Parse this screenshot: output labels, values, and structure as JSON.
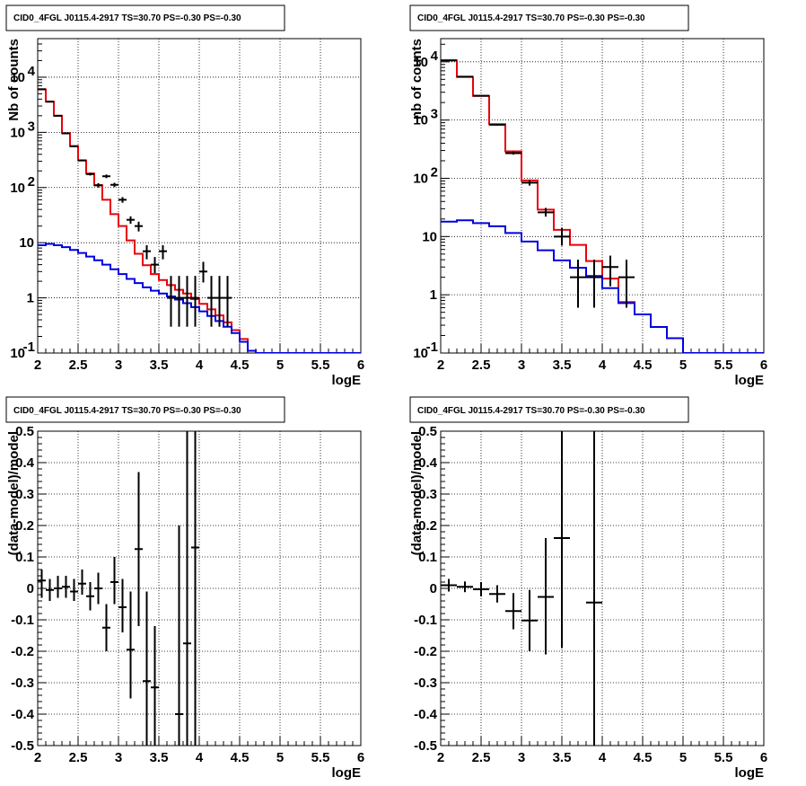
{
  "colors": {
    "data": "#000000",
    "total_model": "#e8000b",
    "source_model": "#0000e0",
    "grid": "#000000"
  },
  "chart_data": [
    {
      "type": "line",
      "title": "CID0_4FGL J0115.4-2917 TS=30.70 PS=-0.30 PS=-0.30",
      "xlabel": "logE",
      "ylabel": "Nb of counts",
      "xlim": [
        2,
        6
      ],
      "ylim": [
        0.1,
        50000
      ],
      "ylog": true,
      "grid": true,
      "xticks": [
        "2",
        "2.5",
        "3",
        "3.5",
        "4",
        "4.5",
        "5",
        "5.5",
        "6"
      ],
      "yticks": [
        {
          "v": 0.1,
          "b": "10",
          "e": "-1"
        },
        {
          "v": 1,
          "b": "1",
          "e": ""
        },
        {
          "v": 10,
          "b": "10",
          "e": ""
        },
        {
          "v": 100,
          "b": "10",
          "e": "2"
        },
        {
          "v": 1000,
          "b": "10",
          "e": "3"
        },
        {
          "v": 10000,
          "b": "10",
          "e": "4"
        }
      ],
      "series": [
        {
          "style": "hist",
          "color": "#e8000b",
          "edges": [
            2,
            2.1,
            2.2,
            2.3,
            2.4,
            2.5,
            2.6,
            2.7,
            2.8,
            2.9,
            3.0,
            3.1,
            3.2,
            3.3,
            3.4,
            3.5,
            3.6,
            3.7,
            3.8,
            3.9,
            4.0,
            4.1,
            4.2,
            4.3,
            4.4,
            4.5,
            4.6,
            4.7,
            4.8,
            4.9,
            5.0,
            5.1,
            5.2,
            5.3,
            5.4,
            5.5,
            5.6,
            5.7,
            5.8,
            5.9,
            6.0
          ],
          "values": [
            6000,
            3600,
            2000,
            960,
            560,
            310,
            180,
            110,
            60,
            33,
            20,
            11,
            6.3,
            3.9,
            2.7,
            2.1,
            1.7,
            1.4,
            1.2,
            0.95,
            0.78,
            0.62,
            0.48,
            0.36,
            0.26,
            0.18,
            0.11,
            0.08,
            0.08,
            0.08,
            0.08,
            0.08,
            0.08,
            0.08,
            0.08,
            0.08,
            0.08,
            0.08,
            0.08,
            0.08
          ]
        },
        {
          "style": "hist",
          "color": "#0000e0",
          "edges": [
            2,
            2.1,
            2.2,
            2.3,
            2.4,
            2.5,
            2.6,
            2.7,
            2.8,
            2.9,
            3.0,
            3.1,
            3.2,
            3.3,
            3.4,
            3.5,
            3.6,
            3.7,
            3.8,
            3.9,
            4.0,
            4.1,
            4.2,
            4.3,
            4.4,
            4.5,
            4.6,
            4.7,
            4.8,
            4.9,
            5.0,
            5.1,
            5.2,
            5.3,
            5.4,
            5.5,
            5.6,
            5.7,
            5.8,
            5.9,
            6.0
          ],
          "values": [
            9.0,
            9.5,
            9.0,
            8.3,
            7.4,
            6.5,
            5.6,
            4.8,
            4.0,
            3.3,
            2.7,
            2.2,
            1.85,
            1.55,
            1.35,
            1.2,
            1.06,
            0.93,
            0.8,
            0.68,
            0.57,
            0.47,
            0.38,
            0.3,
            0.23,
            0.16,
            0.11,
            0.1,
            0.1,
            0.1,
            0.1,
            0.1,
            0.1,
            0.1,
            0.1,
            0.1,
            0.1,
            0.1,
            0.1,
            0.1
          ]
        },
        {
          "style": "points",
          "color": "#000000",
          "x": [
            2.05,
            2.15,
            2.25,
            2.35,
            2.45,
            2.55,
            2.65,
            2.75,
            2.85,
            2.95,
            3.05,
            3.15,
            3.25,
            3.35,
            3.45,
            3.55,
            3.65,
            3.75,
            3.85,
            3.95,
            4.05,
            4.15,
            4.25,
            4.35
          ],
          "y": [
            6050,
            3600,
            2000,
            960,
            560,
            310,
            175,
            110,
            160,
            112,
            60,
            26,
            20,
            7,
            4,
            7,
            1,
            1,
            1,
            1,
            3,
            1,
            1,
            1
          ],
          "ylo": [
            5900,
            3500,
            1950,
            930,
            540,
            300,
            165,
            100,
            148,
            102,
            53,
            22,
            16,
            5,
            2.8,
            5,
            0.3,
            0.3,
            0.3,
            0.3,
            1.9,
            0.3,
            0.3,
            0.3
          ],
          "yhi": [
            6200,
            3700,
            2050,
            990,
            580,
            320,
            185,
            120,
            172,
            122,
            67,
            30,
            24,
            9,
            5.5,
            9,
            2.5,
            2.5,
            2.5,
            2.5,
            4.5,
            2.5,
            2.5,
            2.5
          ],
          "xerr": 0.05
        }
      ]
    },
    {
      "type": "line",
      "title": "CID0_4FGL J0115.4-2917 TS=30.70 PS=-0.30 PS=-0.30",
      "xlabel": "logE",
      "ylabel": "nb of counts",
      "xlim": [
        2,
        6
      ],
      "ylim": [
        0.1,
        25000
      ],
      "ylog": true,
      "grid": true,
      "xticks": [
        "2",
        "2.5",
        "3",
        "3.5",
        "4",
        "4.5",
        "5",
        "5.5",
        "6"
      ],
      "yticks": [
        {
          "v": 0.1,
          "b": "10",
          "e": "-1"
        },
        {
          "v": 1,
          "b": "1",
          "e": ""
        },
        {
          "v": 10,
          "b": "10",
          "e": ""
        },
        {
          "v": 100,
          "b": "10",
          "e": "2"
        },
        {
          "v": 1000,
          "b": "10",
          "e": "3"
        },
        {
          "v": 10000,
          "b": "10",
          "e": "4"
        }
      ],
      "series": [
        {
          "style": "hist",
          "color": "#e8000b",
          "edges": [
            2,
            2.2,
            2.4,
            2.6,
            2.8,
            3.0,
            3.2,
            3.4,
            3.6,
            3.8,
            4.0,
            4.2,
            4.4,
            4.6,
            4.8,
            5.0,
            5.2,
            5.4,
            5.6,
            5.8,
            6.0
          ],
          "values": [
            10500,
            5500,
            2600,
            850,
            290,
            92,
            29,
            13,
            7.2,
            3.8,
            1.9,
            0.75,
            0.46,
            0.28,
            0.18,
            0.1,
            0.1,
            0.1,
            0.1,
            0.1
          ]
        },
        {
          "style": "hist",
          "color": "#0000e0",
          "edges": [
            2,
            2.2,
            2.4,
            2.6,
            2.8,
            3.0,
            3.2,
            3.4,
            3.6,
            3.8,
            4.0,
            4.2,
            4.4,
            4.6,
            4.8,
            5.0,
            5.2,
            5.4,
            5.6,
            5.8,
            6.0
          ],
          "values": [
            18,
            19,
            17,
            15,
            11.5,
            8.2,
            5.8,
            3.9,
            2.9,
            2.1,
            1.3,
            0.72,
            0.46,
            0.28,
            0.18,
            0.1,
            0.1,
            0.1,
            0.1,
            0.1
          ]
        },
        {
          "style": "points",
          "color": "#000000",
          "x": [
            2.1,
            2.3,
            2.5,
            2.7,
            2.9,
            3.1,
            3.3,
            3.5,
            3.7,
            3.9,
            4.1,
            4.3
          ],
          "y": [
            10600,
            5550,
            2610,
            830,
            270,
            84,
            26,
            10,
            2,
            2,
            3,
            2
          ],
          "ylo": [
            10400,
            5450,
            2560,
            805,
            255,
            75,
            22,
            7,
            0.6,
            0.6,
            1.4,
            0.6
          ],
          "yhi": [
            10800,
            5650,
            2660,
            855,
            287,
            93,
            31,
            14,
            4,
            4,
            4.7,
            4
          ],
          "xerr": 0.1
        }
      ]
    },
    {
      "type": "scatter",
      "title": "CID0_4FGL J0115.4-2917 TS=30.70 PS=-0.30 PS=-0.30",
      "xlabel": "logE",
      "ylabel": "(data-model)/model",
      "xlim": [
        2,
        6
      ],
      "ylim": [
        -0.5,
        0.5
      ],
      "ylog": false,
      "grid": true,
      "xticks": [
        "2",
        "2.5",
        "3",
        "3.5",
        "4",
        "4.5",
        "5",
        "5.5",
        "6"
      ],
      "yticks": [
        "-0.5",
        "-0.4",
        "-0.3",
        "-0.2",
        "-0.1",
        "0",
        "0.1",
        "0.2",
        "0.3",
        "0.4",
        "0.5"
      ],
      "series": [
        {
          "style": "points",
          "color": "#000000",
          "x": [
            2.05,
            2.15,
            2.25,
            2.35,
            2.45,
            2.55,
            2.65,
            2.75,
            2.85,
            2.95,
            3.05,
            3.15,
            3.25,
            3.35,
            3.45,
            3.75,
            3.85,
            3.95
          ],
          "y": [
            0.025,
            -0.005,
            0.0,
            0.005,
            -0.01,
            0.015,
            -0.025,
            0.0,
            -0.125,
            0.02,
            -0.06,
            -0.195,
            0.125,
            -0.295,
            -0.315,
            -0.4,
            -0.175,
            0.13
          ],
          "ylo": [
            -0.03,
            -0.04,
            -0.03,
            -0.03,
            -0.04,
            -0.02,
            -0.07,
            -0.05,
            -0.2,
            -0.05,
            -0.14,
            -0.35,
            -0.12,
            -0.5,
            -0.5,
            -0.5,
            -0.5,
            -0.5
          ],
          "yhi": [
            0.06,
            0.03,
            0.04,
            0.04,
            0.03,
            0.06,
            0.02,
            0.05,
            -0.05,
            0.1,
            0.03,
            -0.01,
            0.37,
            -0.01,
            -0.12,
            0.2,
            0.5,
            0.5
          ],
          "xerr": 0.05
        }
      ]
    },
    {
      "type": "scatter",
      "title": "CID0_4FGL J0115.4-2917 TS=30.70 PS=-0.30 PS=-0.30",
      "xlabel": "logE",
      "ylabel": "(data-model)/model",
      "xlim": [
        2,
        6
      ],
      "ylim": [
        -0.5,
        0.5
      ],
      "ylog": false,
      "grid": true,
      "xticks": [
        "2",
        "2.5",
        "3",
        "3.5",
        "4",
        "4.5",
        "5",
        "5.5",
        "6"
      ],
      "yticks": [
        "-0.5",
        "-0.4",
        "-0.3",
        "-0.2",
        "-0.1",
        "0",
        "0.1",
        "0.2",
        "0.3",
        "0.4",
        "0.5"
      ],
      "series": [
        {
          "style": "points",
          "color": "#000000",
          "x": [
            2.1,
            2.3,
            2.5,
            2.7,
            2.9,
            3.1,
            3.3,
            3.5,
            3.9
          ],
          "y": [
            0.01,
            0.005,
            -0.003,
            -0.018,
            -0.072,
            -0.102,
            -0.027,
            0.16,
            -0.045
          ],
          "ylo": [
            -0.01,
            -0.012,
            -0.025,
            -0.045,
            -0.13,
            -0.2,
            -0.21,
            -0.19,
            -0.5
          ],
          "yhi": [
            0.03,
            0.022,
            0.02,
            0.01,
            -0.015,
            -0.005,
            0.16,
            0.5,
            0.5
          ],
          "xerr": 0.1
        }
      ]
    }
  ]
}
